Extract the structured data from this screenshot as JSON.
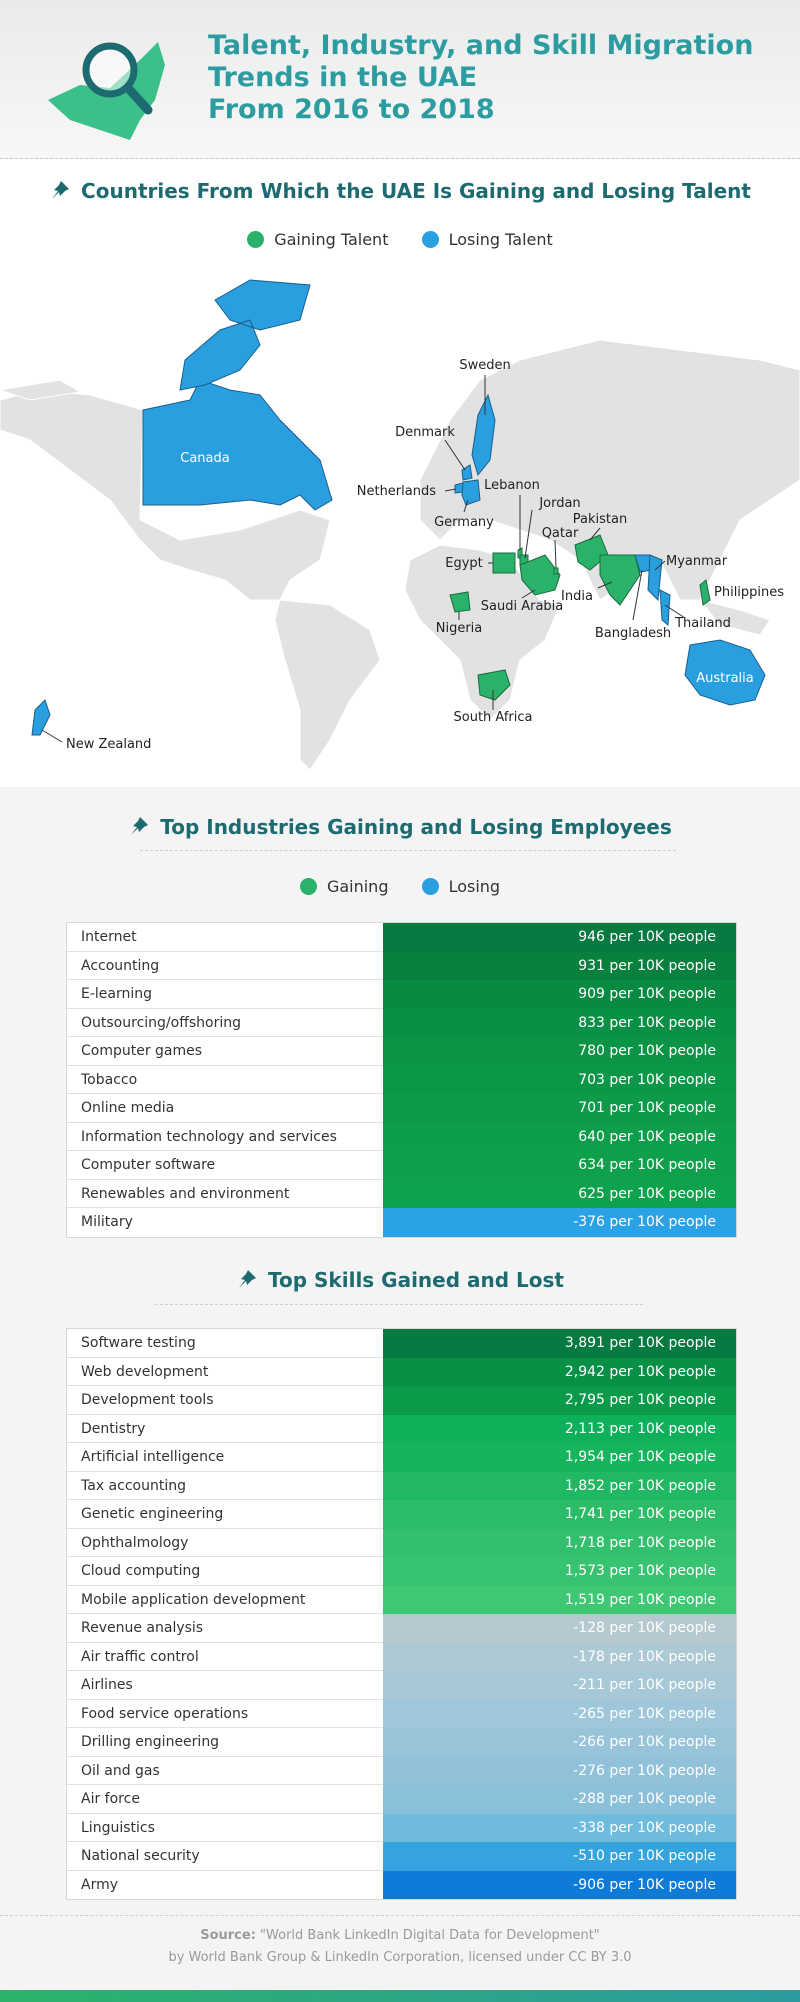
{
  "header": {
    "title_lines": [
      "Talent, Industry, and Skill Migration",
      "Trends in the UAE",
      "From 2016 to 2018"
    ]
  },
  "talent_map": {
    "heading": "Countries From Which the UAE Is Gaining and Losing Talent",
    "legend": [
      "Gaining Talent",
      "Losing Talent"
    ],
    "countries": [
      "Canada",
      "Sweden",
      "Denmark",
      "Netherlands",
      "Germany",
      "Lebanon",
      "Jordan",
      "Pakistan",
      "Qatar",
      "Egypt",
      "Myanmar",
      "Philippines",
      "India",
      "Saudi Arabia",
      "Thailand",
      "Nigeria",
      "Bangladesh",
      "Australia",
      "South Africa",
      "New Zealand"
    ]
  },
  "industries": {
    "heading": "Top Industries Gaining and Losing Employees",
    "legend": [
      "Gaining",
      "Losing"
    ],
    "rows": [
      [
        "Internet",
        "946 per 10K people"
      ],
      [
        "Accounting",
        "931 per 10K people"
      ],
      [
        "E-learning",
        "909 per 10K people"
      ],
      [
        "Outsourcing/offshoring",
        "833 per 10K people"
      ],
      [
        "Computer games",
        "780 per 10K people"
      ],
      [
        "Tobacco",
        "703 per 10K people"
      ],
      [
        "Online media",
        "701 per 10K people"
      ],
      [
        "Information technology and services",
        "640 per 10K people"
      ],
      [
        "Computer software",
        "634 per 10K people"
      ],
      [
        "Renewables and environment",
        "625 per 10K people"
      ],
      [
        "Military",
        "-376 per 10K people"
      ]
    ],
    "row_colors": [
      "#077a41",
      "#08813f",
      "#088a42",
      "#0a9044",
      "#0b9346",
      "#0c9748",
      "#0d9a49",
      "#0e9d4a",
      "#0ea04b",
      "#0fa24c",
      "#2aa3e6"
    ]
  },
  "skills": {
    "heading": "Top Skills Gained and Lost",
    "rows": [
      [
        "Software testing",
        "3,891 per 10K people"
      ],
      [
        "Web development",
        "2,942 per 10K people"
      ],
      [
        "Development tools",
        "2,795 per 10K people"
      ],
      [
        "Dentistry",
        "2,113 per 10K people"
      ],
      [
        "Artificial intelligence",
        "1,954 per 10K people"
      ],
      [
        "Tax accounting",
        "1,852 per 10K people"
      ],
      [
        "Genetic engineering",
        "1,741 per 10K people"
      ],
      [
        "Ophthalmology",
        "1,718 per 10K people"
      ],
      [
        "Cloud computing",
        "1,573 per 10K people"
      ],
      [
        "Mobile application development",
        "1,519 per 10K people"
      ],
      [
        "Revenue analysis",
        "-128 per 10K people"
      ],
      [
        "Air traffic control",
        "-178 per 10K people"
      ],
      [
        "Airlines",
        "-211 per 10K people"
      ],
      [
        "Food service operations",
        "-265 per 10K people"
      ],
      [
        "Drilling engineering",
        "-266 per 10K people"
      ],
      [
        "Oil and gas",
        "-276 per 10K people"
      ],
      [
        "Air force",
        "-288 per 10K people"
      ],
      [
        "Linguistics",
        "-338 per 10K people"
      ],
      [
        "National security",
        "-510 per 10K people"
      ],
      [
        "Army",
        "-906 per 10K people"
      ]
    ],
    "row_colors": [
      "#077a41",
      "#089046",
      "#0a9a49",
      "#0eb05a",
      "#16b45c",
      "#20b862",
      "#2cbc68",
      "#33c06c",
      "#38c370",
      "#3fc774",
      "#b7c9d0",
      "#adc9d4",
      "#a6c8d7",
      "#9fc6d9",
      "#98c4d9",
      "#92c2da",
      "#8bc0da",
      "#6fbbde",
      "#35a4de",
      "#0f7bd9"
    ]
  },
  "source": {
    "label": "Source:",
    "text": "\"World Bank LinkedIn Digital Data for Development\"",
    "line2": "by World Bank Group & LinkedIn Corporation, licensed under CC BY 3.0"
  }
}
